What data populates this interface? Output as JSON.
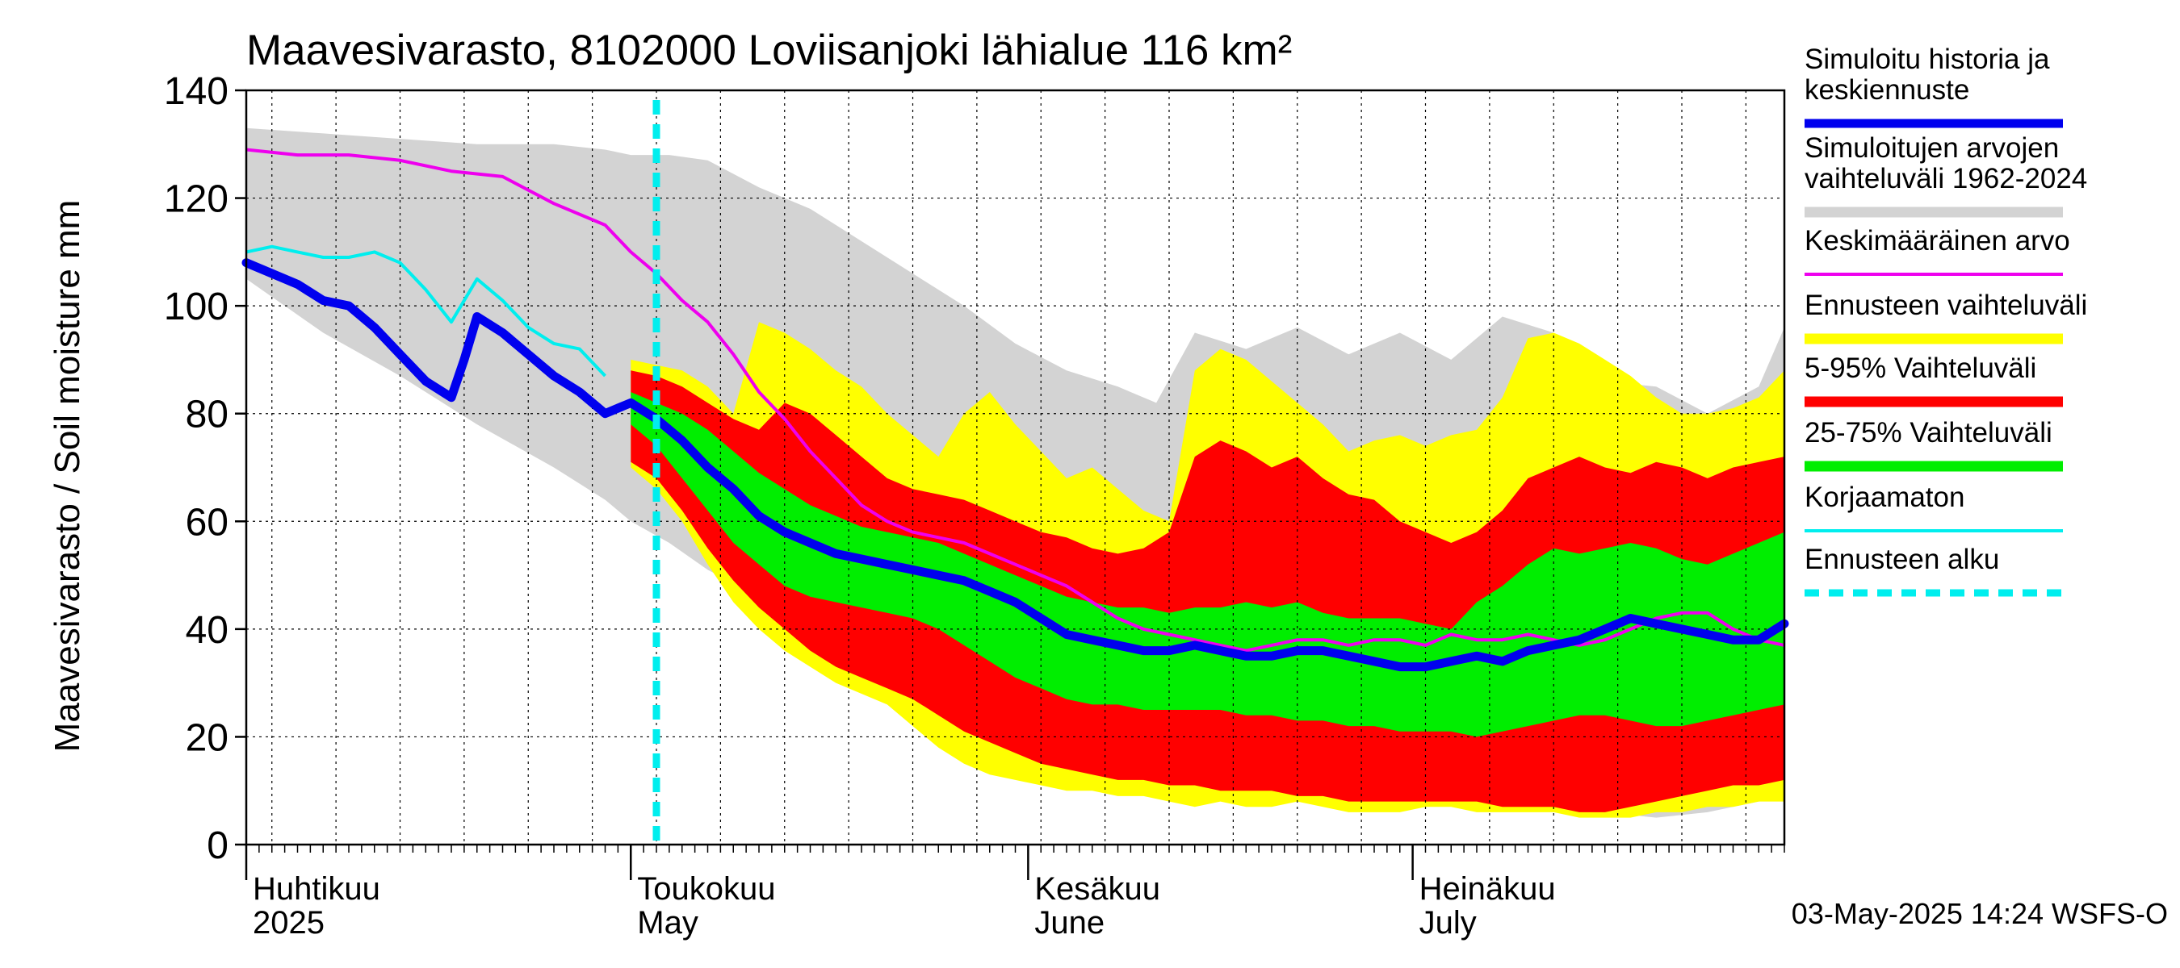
{
  "chart_data": {
    "type": "area",
    "title": "Maavesivarasto, 8102000 Loviisanjoki lähialue 116 km²",
    "ylabel": "Maavesivarasto / Soil moisture   mm",
    "ylim": [
      0,
      140
    ],
    "yticks": [
      0,
      20,
      40,
      60,
      80,
      100,
      120,
      140
    ],
    "x_range_days": [
      0,
      120
    ],
    "x_start_date": "2025-04-01",
    "forecast_start_day": 32,
    "grid": true,
    "month_labels": [
      {
        "day": 0,
        "line1": "Huhtikuu",
        "line2": "2025"
      },
      {
        "day": 30,
        "line1": "Toukokuu",
        "line2": "May"
      },
      {
        "day": 61,
        "line1": "Kesäkuu",
        "line2": "June"
      },
      {
        "day": 91,
        "line1": "Heinäkuu",
        "line2": "July"
      }
    ],
    "footer": "03-May-2025 14:24 WSFS-O",
    "legend": [
      {
        "label": "Simuloitu historia ja keskiennuste",
        "lines": [
          "Simuloitu historia ja",
          "keskiennuste"
        ],
        "color": "#0000ee",
        "style": "thick"
      },
      {
        "label": "Simuloitujen arvojen vaihteluväli 1962-2024",
        "lines": [
          "Simuloitujen arvojen",
          "vaihteluväli 1962-2024"
        ],
        "color": "#d3d3d3",
        "style": "band"
      },
      {
        "label": "Keskimääräinen arvo",
        "lines": [
          "Keskimääräinen arvo"
        ],
        "color": "#ee00ee",
        "style": "thin"
      },
      {
        "label": "Ennusteen vaihteluväli",
        "lines": [
          "Ennusteen vaihteluväli"
        ],
        "color": "#ffff00",
        "style": "band"
      },
      {
        "label": "5-95% Vaihteluväli",
        "lines": [
          "5-95% Vaihteluväli"
        ],
        "color": "#ff0000",
        "style": "band"
      },
      {
        "label": "25-75% Vaihteluväli",
        "lines": [
          "25-75% Vaihteluväli"
        ],
        "color": "#00ee00",
        "style": "band"
      },
      {
        "label": "Korjaamaton",
        "lines": [
          "Korjaamaton"
        ],
        "color": "#00eeee",
        "style": "thin"
      },
      {
        "label": "Ennusteen alku",
        "lines": [
          "Ennusteen alku"
        ],
        "color": "#00eeee",
        "style": "dashed"
      }
    ],
    "series": {
      "historical_range": {
        "x": [
          0,
          6,
          12,
          18,
          24,
          28,
          30,
          33,
          36,
          40,
          44,
          48,
          52,
          56,
          60,
          64,
          68,
          71,
          74,
          78,
          82,
          86,
          90,
          94,
          98,
          102,
          106,
          110,
          114,
          118,
          120
        ],
        "upper": [
          133,
          132,
          131,
          130,
          130,
          129,
          128,
          128,
          127,
          122,
          118,
          112,
          106,
          100,
          93,
          88,
          85,
          82,
          95,
          92,
          96,
          91,
          95,
          90,
          98,
          95,
          86,
          85,
          80,
          85,
          96
        ],
        "lower": [
          105,
          95,
          87,
          78,
          70,
          64,
          60,
          56,
          51,
          46,
          39,
          33,
          27,
          22,
          18,
          15,
          12,
          11,
          10,
          9,
          9,
          8,
          7,
          9,
          8,
          7,
          6,
          5,
          6,
          8,
          9
        ]
      },
      "forecast_range": {
        "x": [
          30,
          32,
          34,
          36,
          38,
          40,
          42,
          44,
          46,
          48,
          50,
          52,
          54,
          56,
          58,
          60,
          62,
          64,
          66,
          68,
          70,
          72,
          74,
          76,
          78,
          80,
          82,
          84,
          86,
          88,
          90,
          92,
          94,
          96,
          98,
          100,
          102,
          104,
          106,
          108,
          110,
          112,
          114,
          116,
          118,
          120
        ],
        "upper": [
          90,
          89,
          88,
          85,
          80,
          97,
          95,
          92,
          88,
          85,
          80,
          76,
          72,
          80,
          84,
          78,
          73,
          68,
          70,
          66,
          62,
          60,
          88,
          92,
          90,
          86,
          82,
          78,
          73,
          75,
          76,
          74,
          76,
          77,
          83,
          94,
          95,
          93,
          90,
          87,
          83,
          80,
          80,
          81,
          83,
          88
        ],
        "lower": [
          70,
          66,
          60,
          52,
          45,
          40,
          36,
          33,
          30,
          28,
          26,
          22,
          18,
          15,
          13,
          12,
          11,
          10,
          10,
          9,
          9,
          8,
          7,
          8,
          7,
          7,
          8,
          7,
          6,
          6,
          6,
          7,
          7,
          6,
          6,
          6,
          6,
          5,
          5,
          5,
          6,
          6,
          7,
          7,
          8,
          8
        ]
      },
      "band_5_95": {
        "x": [
          30,
          32,
          34,
          36,
          38,
          40,
          42,
          44,
          46,
          48,
          50,
          52,
          54,
          56,
          58,
          60,
          62,
          64,
          66,
          68,
          70,
          72,
          74,
          76,
          78,
          80,
          82,
          84,
          86,
          88,
          90,
          92,
          94,
          96,
          98,
          100,
          102,
          104,
          106,
          108,
          110,
          112,
          114,
          116,
          118,
          120
        ],
        "upper": [
          88,
          87,
          85,
          82,
          79,
          77,
          82,
          80,
          76,
          72,
          68,
          66,
          65,
          64,
          62,
          60,
          58,
          57,
          55,
          54,
          55,
          58,
          72,
          75,
          73,
          70,
          72,
          68,
          65,
          64,
          60,
          58,
          56,
          58,
          62,
          68,
          70,
          72,
          70,
          69,
          71,
          70,
          68,
          70,
          71,
          72
        ],
        "lower": [
          71,
          68,
          62,
          55,
          49,
          44,
          40,
          36,
          33,
          31,
          29,
          27,
          24,
          21,
          19,
          17,
          15,
          14,
          13,
          12,
          12,
          11,
          11,
          10,
          10,
          10,
          9,
          9,
          8,
          8,
          8,
          8,
          8,
          8,
          7,
          7,
          7,
          6,
          6,
          7,
          8,
          9,
          10,
          11,
          11,
          12
        ]
      },
      "band_25_75": {
        "x": [
          30,
          32,
          34,
          36,
          38,
          40,
          42,
          44,
          46,
          48,
          50,
          52,
          54,
          56,
          58,
          60,
          62,
          64,
          66,
          68,
          70,
          72,
          74,
          76,
          78,
          80,
          82,
          84,
          86,
          88,
          90,
          92,
          94,
          96,
          98,
          100,
          102,
          104,
          106,
          108,
          110,
          112,
          114,
          116,
          118,
          120
        ],
        "upper": [
          84,
          82,
          80,
          77,
          73,
          69,
          66,
          63,
          61,
          59,
          58,
          57,
          56,
          54,
          52,
          50,
          48,
          46,
          45,
          44,
          44,
          43,
          44,
          44,
          45,
          44,
          45,
          43,
          42,
          42,
          42,
          41,
          40,
          45,
          48,
          52,
          55,
          54,
          55,
          56,
          55,
          53,
          52,
          54,
          56,
          58
        ],
        "lower": [
          78,
          74,
          68,
          62,
          56,
          52,
          48,
          46,
          45,
          44,
          43,
          42,
          40,
          37,
          34,
          31,
          29,
          27,
          26,
          26,
          25,
          25,
          25,
          25,
          24,
          24,
          23,
          23,
          22,
          22,
          21,
          21,
          21,
          20,
          21,
          22,
          23,
          24,
          24,
          23,
          22,
          22,
          23,
          24,
          25,
          26
        ]
      },
      "mean": {
        "x": [
          0,
          4,
          8,
          12,
          16,
          20,
          24,
          28,
          30,
          32,
          34,
          36,
          38,
          40,
          42,
          44,
          46,
          48,
          50,
          52,
          54,
          56,
          58,
          60,
          62,
          64,
          66,
          68,
          70,
          72,
          74,
          76,
          78,
          80,
          82,
          84,
          86,
          88,
          90,
          92,
          94,
          96,
          98,
          100,
          102,
          104,
          106,
          108,
          110,
          112,
          114,
          116,
          118,
          120
        ],
        "y": [
          129,
          128,
          128,
          127,
          125,
          124,
          119,
          115,
          110,
          106,
          101,
          97,
          91,
          84,
          79,
          73,
          68,
          63,
          60,
          58,
          57,
          56,
          54,
          52,
          50,
          48,
          45,
          42,
          40,
          39,
          38,
          37,
          36,
          37,
          38,
          38,
          37,
          38,
          38,
          37,
          39,
          38,
          38,
          39,
          38,
          37,
          38,
          40,
          42,
          43,
          43,
          40,
          38,
          37
        ]
      },
      "uncorrected": {
        "x": [
          0,
          2,
          4,
          6,
          8,
          10,
          12,
          14,
          16,
          18,
          20,
          22,
          24,
          26,
          28
        ],
        "y": [
          110,
          111,
          110,
          109,
          109,
          110,
          108,
          103,
          97,
          105,
          101,
          96,
          93,
          92,
          87
        ]
      },
      "main": {
        "x": [
          0,
          2,
          4,
          6,
          8,
          10,
          12,
          14,
          16,
          17,
          18,
          20,
          22,
          24,
          26,
          28,
          29,
          30,
          32,
          34,
          36,
          38,
          40,
          42,
          44,
          46,
          48,
          50,
          52,
          54,
          56,
          58,
          60,
          62,
          64,
          66,
          68,
          70,
          72,
          74,
          76,
          78,
          80,
          82,
          84,
          86,
          88,
          90,
          92,
          94,
          96,
          98,
          100,
          102,
          104,
          106,
          108,
          110,
          112,
          114,
          116,
          118,
          120
        ],
        "y": [
          108,
          106,
          104,
          101,
          100,
          96,
          91,
          86,
          83,
          90,
          98,
          95,
          91,
          87,
          84,
          80,
          81,
          82,
          79,
          75,
          70,
          66,
          61,
          58,
          56,
          54,
          53,
          52,
          51,
          50,
          49,
          47,
          45,
          42,
          39,
          38,
          37,
          36,
          36,
          37,
          36,
          35,
          35,
          36,
          36,
          35,
          34,
          33,
          33,
          34,
          35,
          34,
          36,
          37,
          38,
          40,
          42,
          41,
          40,
          39,
          38,
          38,
          41
        ]
      }
    }
  }
}
